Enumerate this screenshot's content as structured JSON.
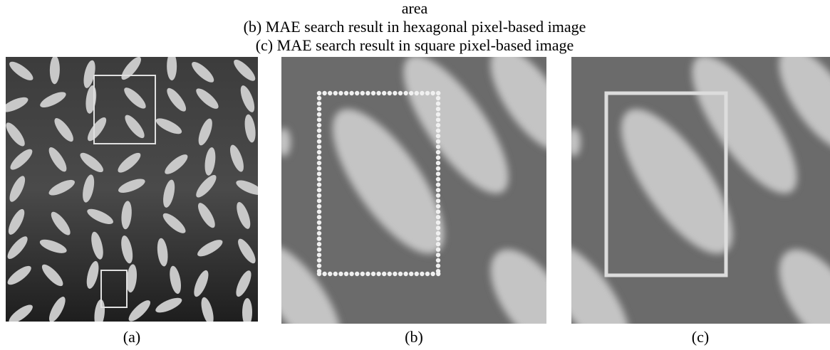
{
  "caption_lines": [
    "area",
    "(b) MAE search result in hexagonal pixel-based image",
    "(c) MAE search result in square pixel-based image"
  ],
  "panels": [
    {
      "label": "(a)"
    },
    {
      "label": "(b)"
    },
    {
      "label": "(c)"
    }
  ]
}
